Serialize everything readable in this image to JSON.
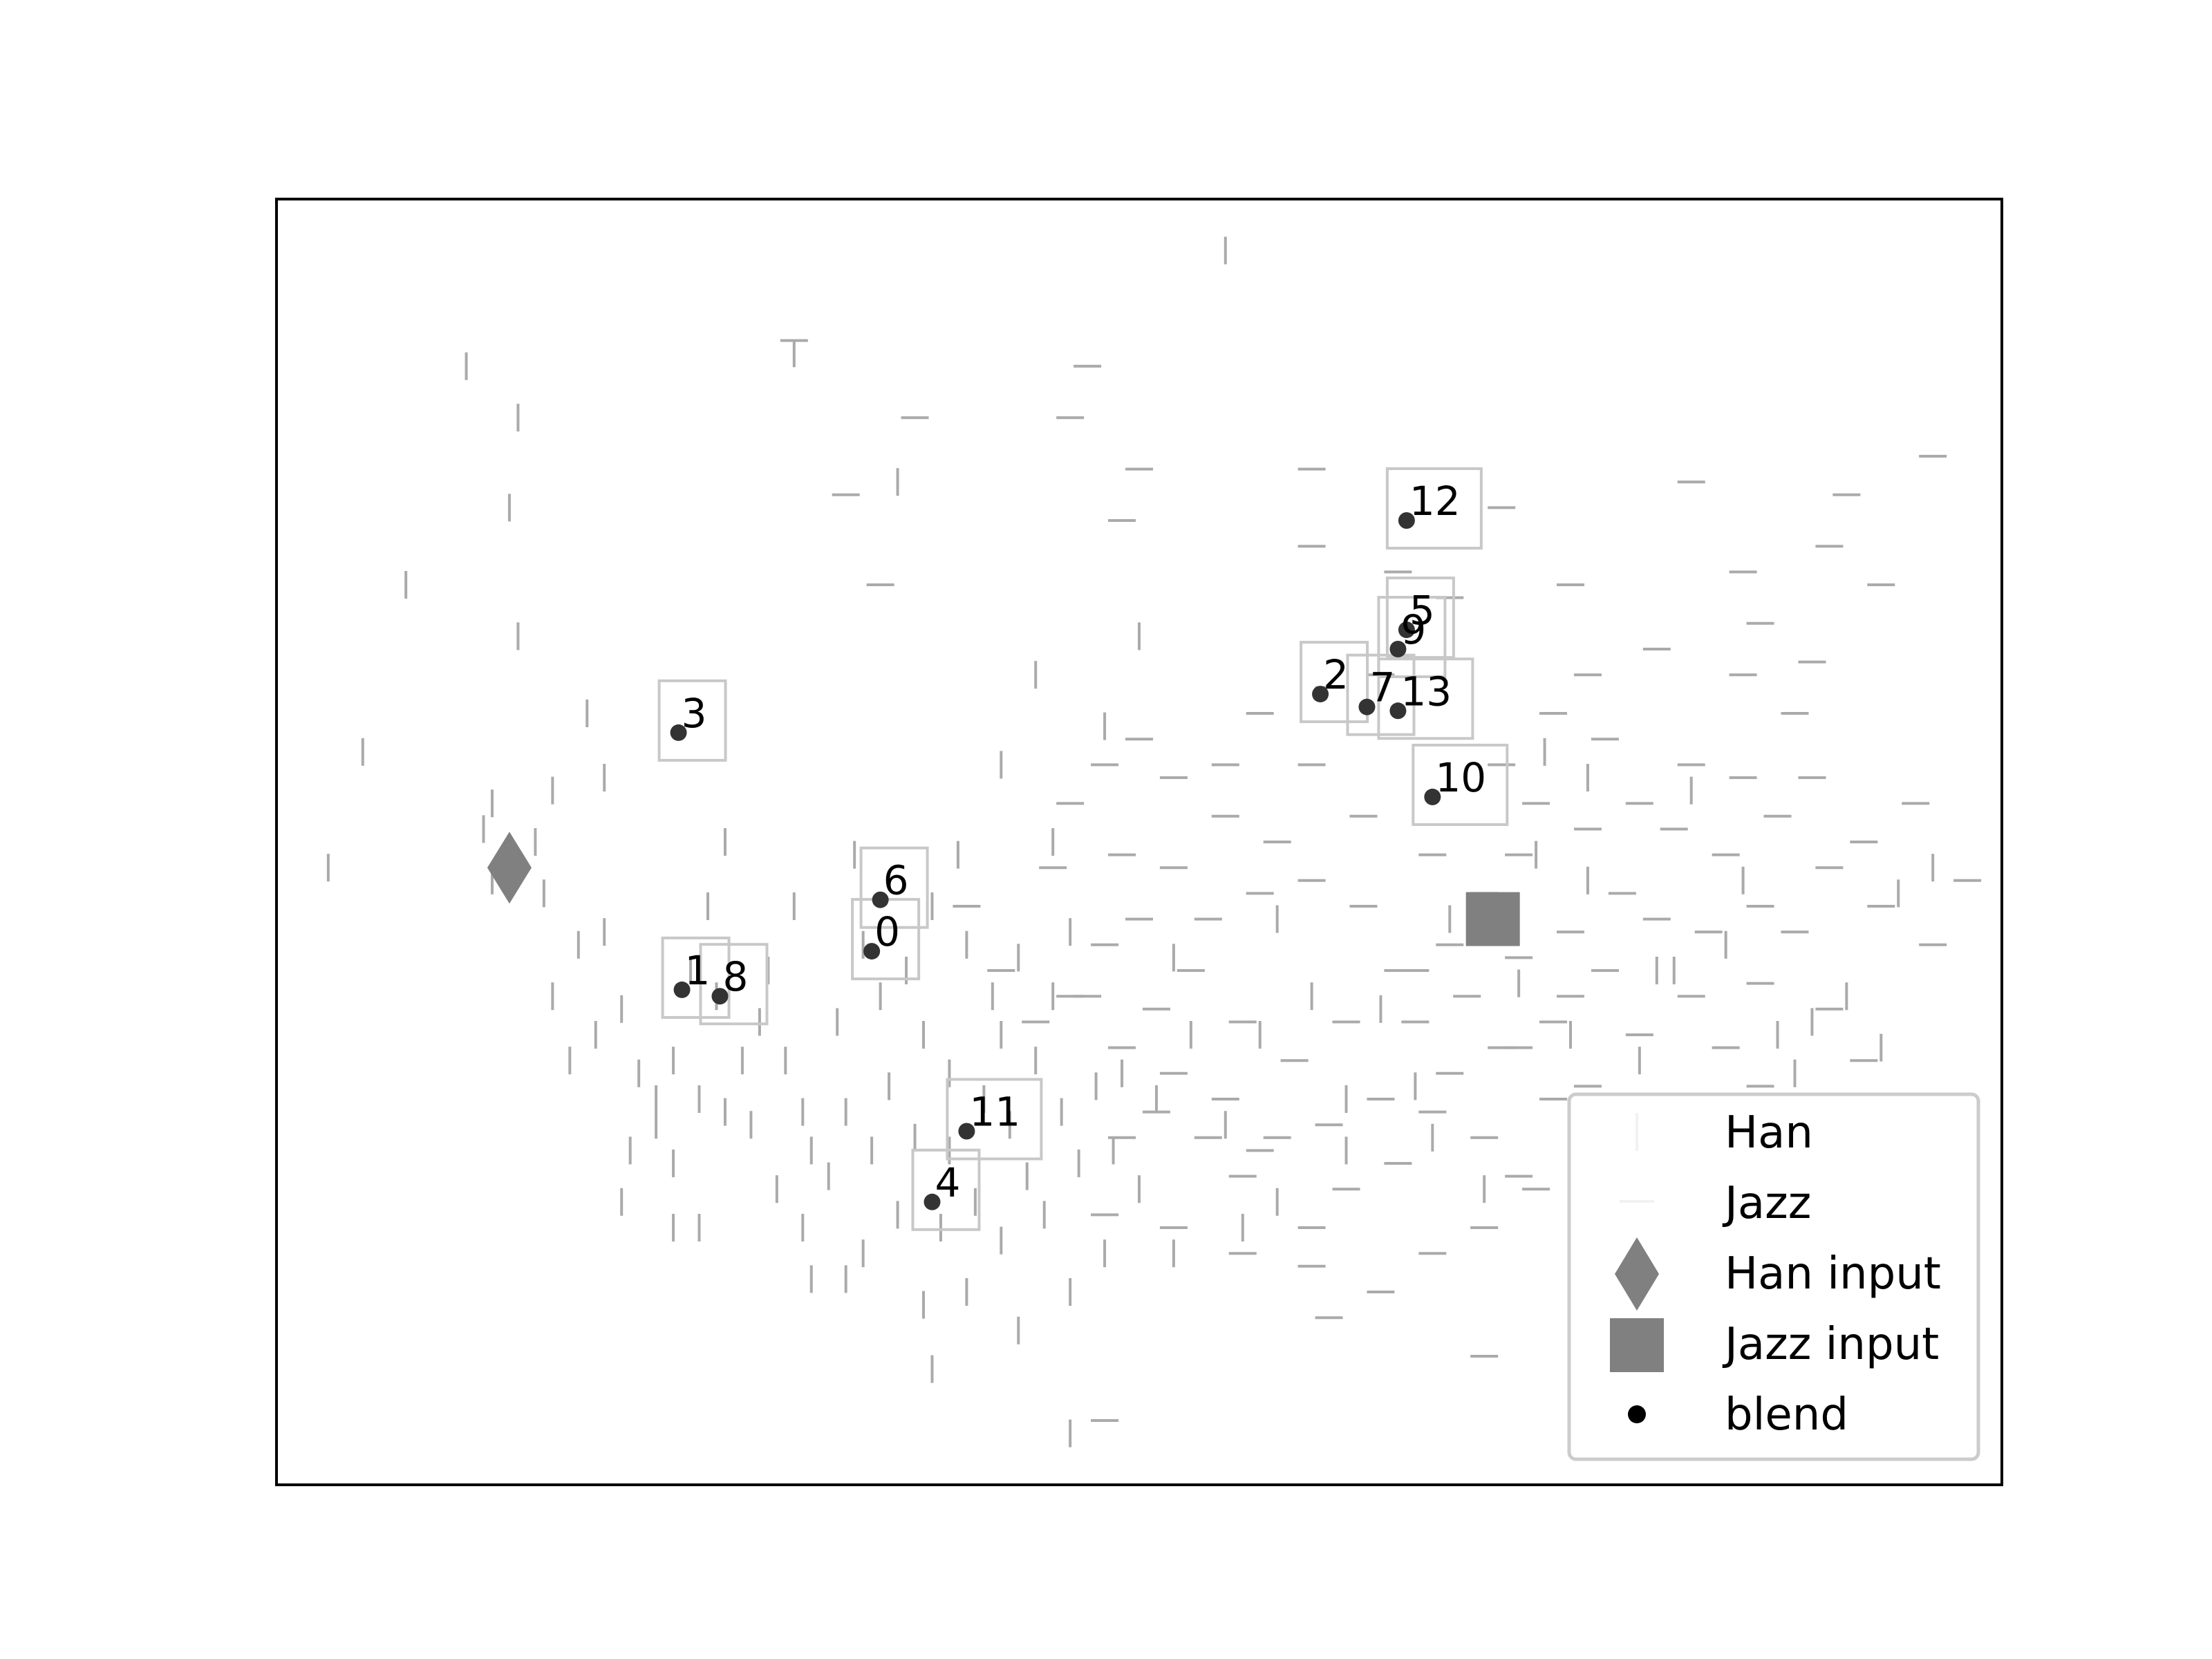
{
  "chart_data": {
    "type": "scatter",
    "title": "",
    "xlabel": "",
    "ylabel": "",
    "xlim": [
      0,
      100
    ],
    "ylim": [
      0,
      100
    ],
    "grid": false,
    "axis_ticks": false,
    "legend_placement": "lower-right",
    "colors": {
      "han": "#aaaaaa",
      "jazz": "#aaaaaa",
      "han_input": "#808080",
      "jazz_input": "#808080",
      "blend": "#333333",
      "blend_box": "#c8c8c8"
    },
    "legend": [
      {
        "label": "Han",
        "marker": "vline"
      },
      {
        "label": "Jazz",
        "marker": "hline"
      },
      {
        "label": "Han input",
        "marker": "diamond"
      },
      {
        "label": "Jazz input",
        "marker": "square"
      },
      {
        "label": "blend",
        "marker": "dot"
      }
    ],
    "series": [
      {
        "name": "Han",
        "marker": "vline",
        "points": [
          [
            5,
            57
          ],
          [
            3,
            48
          ],
          [
            7.5,
            70
          ],
          [
            11,
            87
          ],
          [
            14,
            83
          ],
          [
            13.5,
            76
          ],
          [
            14,
            66
          ],
          [
            12.5,
            53
          ],
          [
            12,
            51
          ],
          [
            12.5,
            47
          ],
          [
            15,
            50
          ],
          [
            16,
            54
          ],
          [
            15.5,
            46
          ],
          [
            18,
            60
          ],
          [
            19,
            55
          ],
          [
            19,
            43
          ],
          [
            17.5,
            42
          ],
          [
            16,
            38
          ],
          [
            17,
            33
          ],
          [
            18.5,
            35
          ],
          [
            20,
            37
          ],
          [
            21,
            32
          ],
          [
            22,
            30
          ],
          [
            20.5,
            26
          ],
          [
            20,
            22
          ],
          [
            22,
            28
          ],
          [
            23,
            33
          ],
          [
            24,
            40
          ],
          [
            25,
            45
          ],
          [
            26,
            50
          ],
          [
            25.5,
            38
          ],
          [
            24.5,
            30
          ],
          [
            23,
            25
          ],
          [
            24.5,
            20
          ],
          [
            23,
            20
          ],
          [
            26,
            29
          ],
          [
            27,
            33
          ],
          [
            28,
            36
          ],
          [
            27.5,
            28
          ],
          [
            29,
            23
          ],
          [
            28.5,
            40
          ],
          [
            30,
            45
          ],
          [
            29.5,
            33
          ],
          [
            30.5,
            29
          ],
          [
            31,
            26
          ],
          [
            30.5,
            20
          ],
          [
            31,
            16
          ],
          [
            32,
            24
          ],
          [
            33,
            29
          ],
          [
            32.5,
            36
          ],
          [
            34,
            42
          ],
          [
            33.5,
            49
          ],
          [
            35,
            38
          ],
          [
            35.5,
            31
          ],
          [
            34.5,
            26
          ],
          [
            34,
            18
          ],
          [
            33,
            16
          ],
          [
            36,
            21
          ],
          [
            37,
            27
          ],
          [
            37.5,
            35
          ],
          [
            38,
            45
          ],
          [
            36.5,
            40
          ],
          [
            39,
            32
          ],
          [
            39,
            26
          ],
          [
            38.5,
            20
          ],
          [
            37.5,
            14
          ],
          [
            38,
            9
          ],
          [
            40,
            15
          ],
          [
            40.5,
            22
          ],
          [
            41,
            30
          ],
          [
            41.5,
            38
          ],
          [
            40,
            42
          ],
          [
            39.5,
            49
          ],
          [
            42,
            35
          ],
          [
            42.5,
            28
          ],
          [
            42,
            19
          ],
          [
            43,
            12
          ],
          [
            43.5,
            24
          ],
          [
            44,
            33
          ],
          [
            43,
            41
          ],
          [
            45,
            38
          ],
          [
            45.5,
            29
          ],
          [
            44.5,
            21
          ],
          [
            46,
            15
          ],
          [
            46.5,
            25
          ],
          [
            47.5,
            31
          ],
          [
            46,
            43
          ],
          [
            49,
            32
          ],
          [
            48.5,
            26
          ],
          [
            48,
            18
          ],
          [
            50,
            23
          ],
          [
            51,
            30
          ],
          [
            52,
            41
          ],
          [
            53,
            35
          ],
          [
            55,
            28
          ],
          [
            56,
            20
          ],
          [
            57,
            35
          ],
          [
            58,
            44
          ],
          [
            60,
            38
          ],
          [
            62,
            26
          ],
          [
            64,
            37
          ],
          [
            66,
            31
          ],
          [
            67,
            27
          ],
          [
            70,
            23
          ],
          [
            72,
            39
          ],
          [
            73,
            49
          ],
          [
            73.5,
            57
          ],
          [
            75,
            35
          ],
          [
            76,
            47
          ],
          [
            78,
            29
          ],
          [
            79,
            33
          ],
          [
            80,
            40
          ],
          [
            82,
            25
          ],
          [
            84,
            42
          ],
          [
            85,
            28
          ],
          [
            87,
            35
          ],
          [
            88,
            32
          ],
          [
            89,
            36
          ],
          [
            91,
            38
          ],
          [
            93,
            34
          ],
          [
            94,
            46
          ],
          [
            96,
            48
          ],
          [
            45,
            50
          ],
          [
            42,
            56
          ],
          [
            48,
            59
          ],
          [
            44,
            63
          ],
          [
            50,
            66
          ],
          [
            36,
            78
          ],
          [
            30,
            88
          ],
          [
            55,
            96
          ],
          [
            46,
            4
          ],
          [
            52,
            18
          ],
          [
            58,
            22
          ],
          [
            62,
            30
          ],
          [
            68,
            44
          ],
          [
            70,
            45
          ],
          [
            76,
            55
          ],
          [
            82,
            54
          ],
          [
            85,
            47
          ],
          [
            81,
            40
          ]
        ]
      },
      {
        "name": "Jazz",
        "marker": "hline",
        "points": [
          [
            30,
            89
          ],
          [
            37,
            83
          ],
          [
            47,
            87
          ],
          [
            46,
            83
          ],
          [
            50,
            79
          ],
          [
            33,
            77
          ],
          [
            35,
            70
          ],
          [
            49,
            75
          ],
          [
            60,
            79
          ],
          [
            60,
            73
          ],
          [
            65,
            71
          ],
          [
            75,
            70
          ],
          [
            76,
            63
          ],
          [
            77,
            58
          ],
          [
            73,
            53
          ],
          [
            80,
            65
          ],
          [
            85,
            63
          ],
          [
            88,
            60
          ],
          [
            85,
            71
          ],
          [
            91,
            77
          ],
          [
            93,
            70
          ],
          [
            96,
            80
          ],
          [
            90,
            73
          ],
          [
            82,
            78
          ],
          [
            71,
            76
          ],
          [
            68,
            69
          ],
          [
            64,
            63
          ],
          [
            61,
            62
          ],
          [
            57,
            60
          ],
          [
            55,
            56
          ],
          [
            52,
            55
          ],
          [
            50,
            58
          ],
          [
            48,
            56
          ],
          [
            46,
            53
          ],
          [
            45,
            48
          ],
          [
            40,
            45
          ],
          [
            42,
            40
          ],
          [
            44,
            36
          ],
          [
            47,
            38
          ],
          [
            49,
            34
          ],
          [
            52,
            32
          ],
          [
            55,
            30
          ],
          [
            56,
            24
          ],
          [
            58,
            27
          ],
          [
            60,
            20
          ],
          [
            62,
            23
          ],
          [
            65,
            25
          ],
          [
            67,
            29
          ],
          [
            70,
            27
          ],
          [
            72,
            24
          ],
          [
            74,
            30
          ],
          [
            76,
            31
          ],
          [
            79,
            35
          ],
          [
            82,
            38
          ],
          [
            84,
            34
          ],
          [
            86,
            31
          ],
          [
            88,
            28
          ],
          [
            90,
            37
          ],
          [
            92,
            33
          ],
          [
            94,
            29
          ],
          [
            96,
            42
          ],
          [
            93,
            45
          ],
          [
            90,
            48
          ],
          [
            87,
            52
          ],
          [
            84,
            49
          ],
          [
            81,
            51
          ],
          [
            78,
            46
          ],
          [
            75,
            43
          ],
          [
            72,
            41
          ],
          [
            69,
            38
          ],
          [
            66,
            40
          ],
          [
            63,
            45
          ],
          [
            60,
            47
          ],
          [
            58,
            50
          ],
          [
            55,
            52
          ],
          [
            52,
            48
          ],
          [
            50,
            44
          ],
          [
            48,
            42
          ],
          [
            46,
            38
          ],
          [
            53,
            40
          ],
          [
            56,
            36
          ],
          [
            59,
            33
          ],
          [
            62,
            36
          ],
          [
            65,
            40
          ],
          [
            68,
            42
          ],
          [
            70,
            46
          ],
          [
            72,
            49
          ],
          [
            76,
            51
          ],
          [
            79,
            53
          ],
          [
            82,
            56
          ],
          [
            85,
            55
          ],
          [
            89,
            55
          ],
          [
            92,
            50
          ],
          [
            95,
            53
          ],
          [
            98,
            47
          ],
          [
            88,
            43
          ],
          [
            86,
            39
          ],
          [
            83,
            43
          ],
          [
            80,
            44
          ],
          [
            77,
            40
          ],
          [
            74,
            36
          ],
          [
            71,
            34
          ],
          [
            68,
            32
          ],
          [
            66,
            36
          ],
          [
            64,
            30
          ],
          [
            61,
            28
          ],
          [
            57,
            26
          ],
          [
            54,
            27
          ],
          [
            51,
            29
          ],
          [
            49,
            27
          ],
          [
            48,
            21
          ],
          [
            52,
            20
          ],
          [
            56,
            18
          ],
          [
            60,
            17
          ],
          [
            64,
            15
          ],
          [
            67,
            18
          ],
          [
            70,
            20
          ],
          [
            73,
            23
          ],
          [
            76,
            25
          ],
          [
            79,
            27
          ],
          [
            81,
            29
          ],
          [
            78,
            16
          ],
          [
            70,
            10
          ],
          [
            61,
            13
          ],
          [
            48,
            5
          ],
          [
            72,
            34
          ],
          [
            75,
            38
          ],
          [
            67,
            49
          ],
          [
            63,
            52
          ],
          [
            60,
            56
          ],
          [
            57,
            46
          ],
          [
            54,
            44
          ],
          [
            51,
            37
          ],
          [
            49,
            49
          ],
          [
            71,
            56
          ],
          [
            74,
            60
          ],
          [
            86,
            67
          ],
          [
            89,
            64
          ],
          [
            86,
            45
          ]
        ]
      }
    ],
    "han_input": {
      "name": "Han input",
      "x": 13.5,
      "y": 48
    },
    "jazz_input": {
      "name": "Jazz input",
      "x": 70.5,
      "y": 44
    },
    "blend": {
      "name": "blend",
      "points": [
        {
          "label": "0",
          "x": 34.5,
          "y": 41.5
        },
        {
          "label": "1",
          "x": 23.5,
          "y": 38.5
        },
        {
          "label": "2",
          "x": 60.5,
          "y": 61.5
        },
        {
          "label": "3",
          "x": 23.3,
          "y": 58.5
        },
        {
          "label": "4",
          "x": 38,
          "y": 22
        },
        {
          "label": "5",
          "x": 65.5,
          "y": 66.5
        },
        {
          "label": "6",
          "x": 35,
          "y": 45.5
        },
        {
          "label": "7",
          "x": 63.2,
          "y": 60.5
        },
        {
          "label": "8",
          "x": 25.7,
          "y": 38
        },
        {
          "label": "9",
          "x": 65,
          "y": 65
        },
        {
          "label": "10",
          "x": 67,
          "y": 53.5
        },
        {
          "label": "11",
          "x": 40,
          "y": 27.5
        },
        {
          "label": "12",
          "x": 65.5,
          "y": 75
        },
        {
          "label": "13",
          "x": 65,
          "y": 60.2
        }
      ]
    }
  }
}
